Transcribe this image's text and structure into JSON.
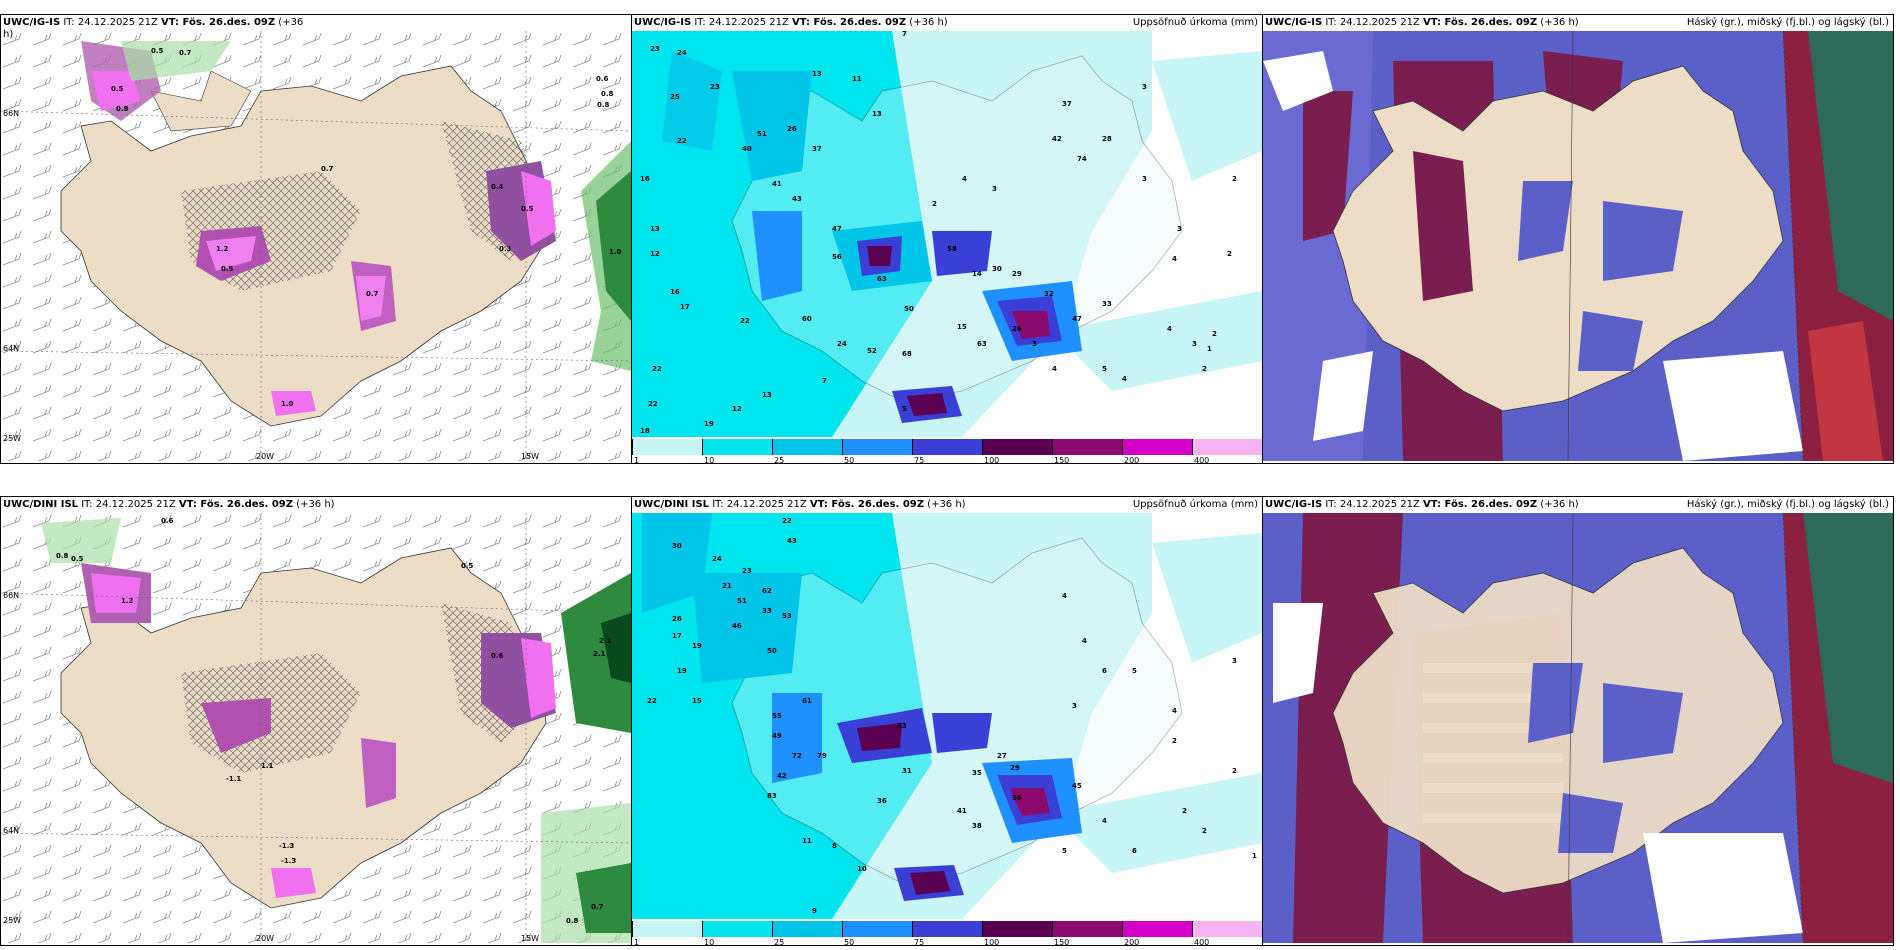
{
  "top_left": {
    "title_a": "UWC/IG-IS",
    "title_b": " IT: 24.12.2025 21Z ",
    "title_c": "VT: Fös. 26.des. 09Z",
    "title_d": " (+36",
    "title_e": "h)",
    "axis_lon1": "20W",
    "axis_lon2": "15W",
    "axis_lat1": "66N",
    "axis_lat2": "64N",
    "axis_lon_left": "25W",
    "labels": [
      "0.5",
      "0.7",
      "0.6",
      "0.8",
      "0.8",
      "1.0",
      "0.4",
      "0.3",
      "0.5",
      "0.8",
      "1.2",
      "0.5",
      "0.7",
      "1.0",
      "0.5",
      "0.7"
    ]
  },
  "top_mid": {
    "title_a": "UWC/IG-IS",
    "title_b": " IT: 24.12.2025 21Z ",
    "title_c": "VT: Fös. 26.des. 09Z",
    "title_d": " (+36 h)",
    "right": "Uppsöfnuð úrkoma (mm)",
    "nums": [
      "23",
      "24",
      "25",
      "23",
      "22",
      "16",
      "13",
      "12",
      "16",
      "17",
      "22",
      "22",
      "22",
      "18",
      "19",
      "12",
      "13",
      "7",
      "13",
      "11",
      "13",
      "7",
      "26",
      "51",
      "37",
      "40",
      "41",
      "43",
      "47",
      "56",
      "63",
      "60",
      "24",
      "52",
      "68",
      "50",
      "58",
      "14",
      "30",
      "29",
      "63",
      "15",
      "32",
      "26",
      "47",
      "33",
      "42",
      "74",
      "37",
      "28",
      "3",
      "3",
      "2",
      "4",
      "3",
      "3",
      "4",
      "5",
      "4",
      "2",
      "2",
      "1",
      "3",
      "4",
      "2",
      "5",
      "4",
      "2",
      "3"
    ]
  },
  "top_right": {
    "title_a": "UWC/IG-IS",
    "title_b": " IT: 24.12.2025 21Z ",
    "title_c": "VT: Fös. 26.des. 09Z",
    "title_d": " (+36 h)",
    "right": "Háský (gr.), miðský (fj.bl.) og lágský (bl.)"
  },
  "bot_left": {
    "title_a": "UWC/DINI ISL",
    "title_b": " IT: 24.12.2025 21Z ",
    "title_c": "VT: Fös. 26.des. 09Z",
    "title_d": " (+36 h)",
    "axis_lon1": "20W",
    "axis_lon2": "15W",
    "axis_lat1": "66N",
    "axis_lat2": "64N",
    "axis_lon_left": "25W",
    "labels": [
      "0.8",
      "0.5",
      "0.6",
      "1.2",
      "0.5",
      "2.2",
      "2.1",
      "0.6",
      "1.1",
      "-1.3",
      "-1.3",
      "0.7",
      "0.8",
      "-1.1"
    ]
  },
  "bot_mid": {
    "title_a": "UWC/DINI ISL",
    "title_b": " IT: 24.12.2025 21Z ",
    "title_c": "VT: Fös. 26.des. 09Z",
    "title_d": " (+36 h)",
    "right": "Uppsöfnuð úrkoma (mm)",
    "nums": [
      "30",
      "22",
      "24",
      "23",
      "21",
      "17",
      "51",
      "33",
      "46",
      "50",
      "43",
      "62",
      "53",
      "61",
      "19",
      "15",
      "26",
      "22",
      "19",
      "43",
      "55",
      "49",
      "72",
      "79",
      "42",
      "83",
      "31",
      "36",
      "41",
      "56",
      "38",
      "27",
      "29",
      "35",
      "45",
      "11",
      "8",
      "10",
      "9",
      "2",
      "2",
      "4",
      "3",
      "4",
      "6",
      "5",
      "4",
      "2",
      "1",
      "2",
      "3",
      "4",
      "5",
      "6"
    ]
  },
  "bot_right": {
    "title_a": "UWC/IG-IS",
    "title_b": " IT: 24.12.2025 21Z ",
    "title_c": "VT: Fös. 26.des. 09Z",
    "title_d": " (+36 h)",
    "right": "Háský (gr.), miðský (fj.bl.) og lágský (bl.)"
  },
  "colorbar": {
    "ticks": [
      "1",
      "10",
      "25",
      "50",
      "75",
      "100",
      "150",
      "200",
      "400"
    ],
    "colors": [
      "#c8f5f5",
      "#00e5ee",
      "#00c5e8",
      "#1e90ff",
      "#3a3fd6",
      "#5a0050",
      "#8b0a6e",
      "#d400c8",
      "#f4b4f4"
    ]
  }
}
